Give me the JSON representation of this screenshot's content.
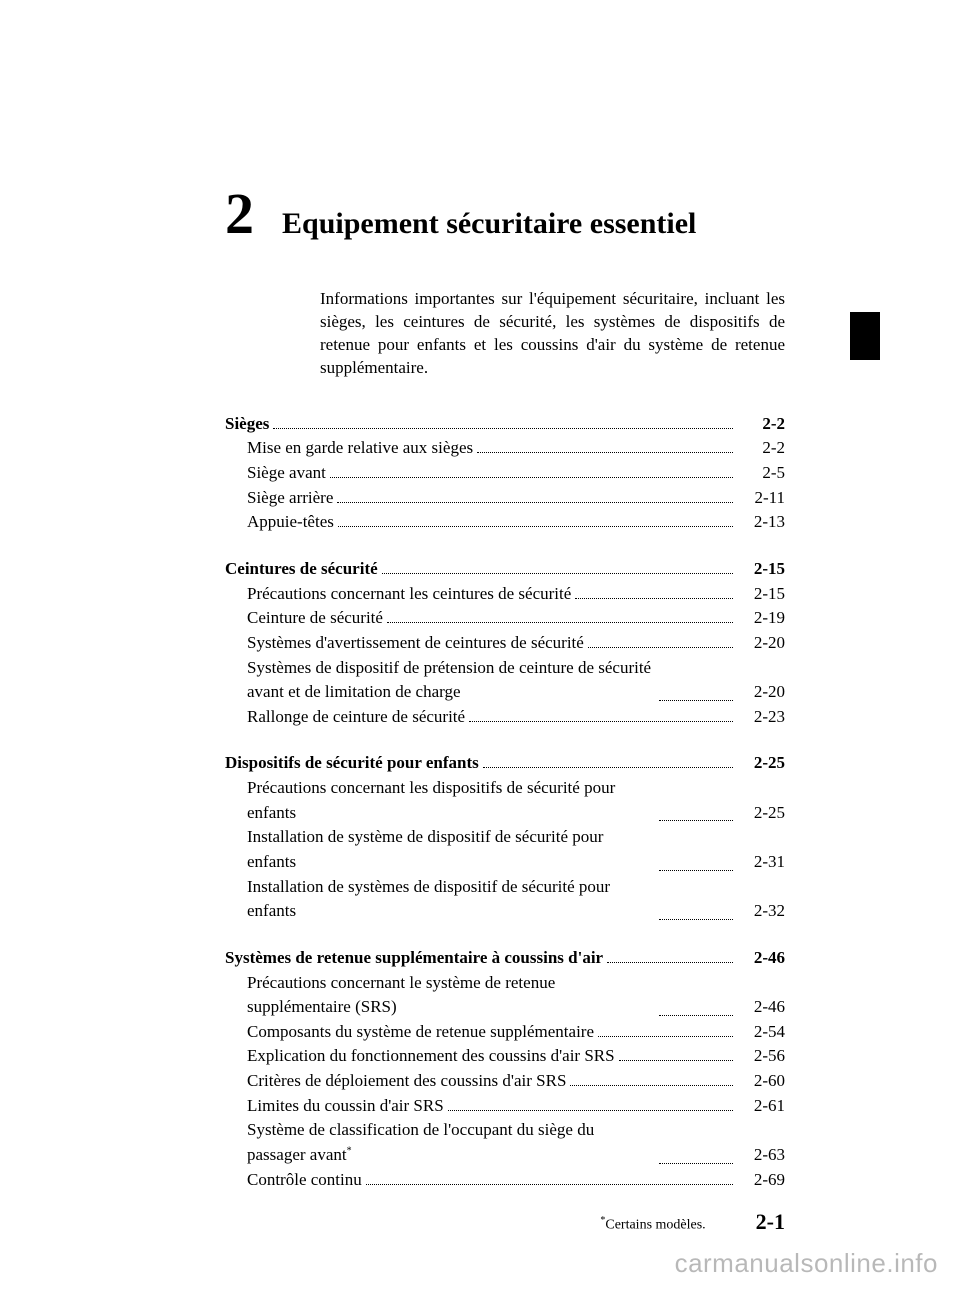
{
  "chapter": {
    "number": "2",
    "title": "Equipement sécuritaire essentiel",
    "intro": "Informations importantes sur l'équipement sécuritaire, incluant les sièges, les ceintures de sécurité, les systèmes de dispositifs de retenue pour enfants et les coussins d'air du système de retenue supplémentaire."
  },
  "toc": {
    "sections": [
      {
        "heading": {
          "label": "Sièges",
          "page": "2-2"
        },
        "items": [
          {
            "label": "Mise en garde relative aux sièges",
            "page": "2-2"
          },
          {
            "label": "Siège avant",
            "page": "2-5"
          },
          {
            "label": "Siège arrière",
            "page": "2-11"
          },
          {
            "label": "Appuie-têtes",
            "page": "2-13"
          }
        ]
      },
      {
        "heading": {
          "label": "Ceintures de sécurité",
          "page": "2-15"
        },
        "items": [
          {
            "label": "Précautions concernant les ceintures de sécurité",
            "page": "2-15"
          },
          {
            "label": "Ceinture de sécurité",
            "page": "2-19"
          },
          {
            "label": "Systèmes d'avertissement de ceintures de sécurité",
            "page": "2-20"
          },
          {
            "label": "Systèmes de dispositif de prétension de ceinture de sécurité avant et de limitation de charge",
            "page": "2-20",
            "multiline": true
          },
          {
            "label": "Rallonge de ceinture de sécurité",
            "page": "2-23"
          }
        ]
      },
      {
        "heading": {
          "label": "Dispositifs de sécurité pour enfants",
          "page": "2-25"
        },
        "items": [
          {
            "label": "Précautions concernant les dispositifs de sécurité pour enfants",
            "page": "2-25",
            "multiline": true
          },
          {
            "label": "Installation de système de dispositif de sécurité pour enfants",
            "page": "2-31",
            "multiline": true
          },
          {
            "label": "Installation de systèmes de dispositif de sécurité pour enfants",
            "page": "2-32",
            "multiline": true
          }
        ]
      },
      {
        "heading": {
          "label": "Systèmes de retenue supplémentaire à coussins d'air",
          "page": "2-46"
        },
        "items": [
          {
            "label": "Précautions concernant le système de retenue supplémentaire (SRS)",
            "page": "2-46",
            "multiline": true
          },
          {
            "label": "Composants du système de retenue supplémentaire",
            "page": "2-54"
          },
          {
            "label": "Explication du fonctionnement des coussins d'air SRS",
            "page": "2-56"
          },
          {
            "label": "Critères de déploiement des coussins d'air SRS",
            "page": "2-60"
          },
          {
            "label": "Limites du coussin d'air SRS",
            "page": "2-61"
          },
          {
            "label": "Système de classification de l'occupant du siège du passager avant",
            "page": "2-63",
            "star": true,
            "multiline": true
          },
          {
            "label": "Contrôle continu",
            "page": "2-69"
          }
        ]
      }
    ]
  },
  "footer": {
    "footnote_star": "*",
    "footnote_text": "Certains modèles.",
    "page_number": "2-1"
  },
  "watermark": "carmanualsonline.info"
}
